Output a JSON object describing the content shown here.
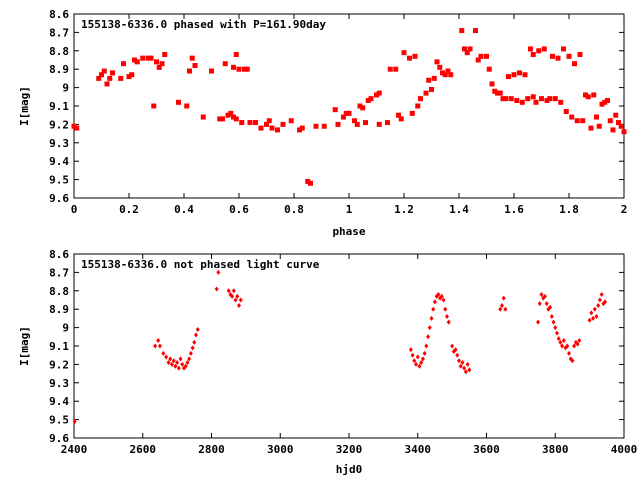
{
  "chart_data": [
    {
      "type": "scatter",
      "title": "155138-6336.0 phased with P=161.90day",
      "xlabel": "phase",
      "ylabel": "I[mag]",
      "xlim": [
        0,
        2
      ],
      "ylim": [
        9.6,
        8.6
      ],
      "y_inverted": true,
      "xticks": [
        "0",
        "0.2",
        "0.4",
        "0.6",
        "0.8",
        "1",
        "1.2",
        "1.4",
        "1.6",
        "1.8",
        "2"
      ],
      "yticks": [
        "8.6",
        "8.7",
        "8.8",
        "8.9",
        "9",
        "9.1",
        "9.2",
        "9.3",
        "9.4",
        "9.5",
        "9.6"
      ],
      "marker_color": "#ff0000",
      "points": [
        [
          0.0,
          9.21
        ],
        [
          0.01,
          9.22
        ],
        [
          0.09,
          8.95
        ],
        [
          0.1,
          8.93
        ],
        [
          0.11,
          8.91
        ],
        [
          0.12,
          8.98
        ],
        [
          0.13,
          8.95
        ],
        [
          0.14,
          8.92
        ],
        [
          0.17,
          8.95
        ],
        [
          0.18,
          8.87
        ],
        [
          0.2,
          8.94
        ],
        [
          0.21,
          8.93
        ],
        [
          0.22,
          8.85
        ],
        [
          0.23,
          8.86
        ],
        [
          0.25,
          8.84
        ],
        [
          0.27,
          8.84
        ],
        [
          0.28,
          8.84
        ],
        [
          0.29,
          9.1
        ],
        [
          0.3,
          8.86
        ],
        [
          0.31,
          8.89
        ],
        [
          0.32,
          8.87
        ],
        [
          0.33,
          8.82
        ],
        [
          0.38,
          9.08
        ],
        [
          0.41,
          9.1
        ],
        [
          0.42,
          8.91
        ],
        [
          0.43,
          8.84
        ],
        [
          0.44,
          8.88
        ],
        [
          0.47,
          9.16
        ],
        [
          0.5,
          8.91
        ],
        [
          0.53,
          9.17
        ],
        [
          0.54,
          9.17
        ],
        [
          0.55,
          8.87
        ],
        [
          0.56,
          9.15
        ],
        [
          0.57,
          9.14
        ],
        [
          0.58,
          8.89
        ],
        [
          0.58,
          9.16
        ],
        [
          0.59,
          8.82
        ],
        [
          0.59,
          9.17
        ],
        [
          0.6,
          8.9
        ],
        [
          0.61,
          9.19
        ],
        [
          0.62,
          8.9
        ],
        [
          0.63,
          8.9
        ],
        [
          0.64,
          9.19
        ],
        [
          0.66,
          9.19
        ],
        [
          0.68,
          9.22
        ],
        [
          0.7,
          9.2
        ],
        [
          0.71,
          9.18
        ],
        [
          0.72,
          9.22
        ],
        [
          0.74,
          9.23
        ],
        [
          0.76,
          9.2
        ],
        [
          0.79,
          9.18
        ],
        [
          0.82,
          9.23
        ],
        [
          0.83,
          9.22
        ],
        [
          0.85,
          9.51
        ],
        [
          0.86,
          9.52
        ],
        [
          0.88,
          9.21
        ],
        [
          0.91,
          9.21
        ],
        [
          0.95,
          9.12
        ],
        [
          0.96,
          9.2
        ],
        [
          0.98,
          9.16
        ],
        [
          0.99,
          9.14
        ],
        [
          1.0,
          9.14
        ],
        [
          1.02,
          9.18
        ],
        [
          1.03,
          9.2
        ],
        [
          1.04,
          9.1
        ],
        [
          1.05,
          9.11
        ],
        [
          1.06,
          9.19
        ],
        [
          1.07,
          9.07
        ],
        [
          1.08,
          9.06
        ],
        [
          1.1,
          9.04
        ],
        [
          1.11,
          9.03
        ],
        [
          1.11,
          9.2
        ],
        [
          1.14,
          9.19
        ],
        [
          1.15,
          8.9
        ],
        [
          1.17,
          8.9
        ],
        [
          1.18,
          9.15
        ],
        [
          1.19,
          9.17
        ],
        [
          1.2,
          8.81
        ],
        [
          1.22,
          8.84
        ],
        [
          1.23,
          9.14
        ],
        [
          1.24,
          8.83
        ],
        [
          1.25,
          9.1
        ],
        [
          1.26,
          9.06
        ],
        [
          1.28,
          9.03
        ],
        [
          1.29,
          8.96
        ],
        [
          1.3,
          9.01
        ],
        [
          1.31,
          8.95
        ],
        [
          1.32,
          8.86
        ],
        [
          1.33,
          8.89
        ],
        [
          1.34,
          8.92
        ],
        [
          1.35,
          8.93
        ],
        [
          1.36,
          8.91
        ],
        [
          1.37,
          8.93
        ],
        [
          1.41,
          8.69
        ],
        [
          1.42,
          8.79
        ],
        [
          1.43,
          8.81
        ],
        [
          1.44,
          8.79
        ],
        [
          1.46,
          8.69
        ],
        [
          1.47,
          8.85
        ],
        [
          1.48,
          8.83
        ],
        [
          1.5,
          8.83
        ],
        [
          1.51,
          8.9
        ],
        [
          1.52,
          8.98
        ],
        [
          1.53,
          9.02
        ],
        [
          1.54,
          9.03
        ],
        [
          1.55,
          9.03
        ],
        [
          1.56,
          9.06
        ],
        [
          1.57,
          9.06
        ],
        [
          1.58,
          8.94
        ],
        [
          1.59,
          9.06
        ],
        [
          1.6,
          8.93
        ],
        [
          1.61,
          9.07
        ],
        [
          1.62,
          8.92
        ],
        [
          1.63,
          9.08
        ],
        [
          1.64,
          8.93
        ],
        [
          1.65,
          9.06
        ],
        [
          1.66,
          8.79
        ],
        [
          1.67,
          9.05
        ],
        [
          1.67,
          8.82
        ],
        [
          1.68,
          9.08
        ],
        [
          1.69,
          8.8
        ],
        [
          1.7,
          9.06
        ],
        [
          1.71,
          8.79
        ],
        [
          1.72,
          9.07
        ],
        [
          1.73,
          9.06
        ],
        [
          1.74,
          8.83
        ],
        [
          1.75,
          9.06
        ],
        [
          1.76,
          8.84
        ],
        [
          1.77,
          9.08
        ],
        [
          1.78,
          8.79
        ],
        [
          1.79,
          9.13
        ],
        [
          1.8,
          8.83
        ],
        [
          1.81,
          9.16
        ],
        [
          1.82,
          8.87
        ],
        [
          1.83,
          9.18
        ],
        [
          1.84,
          8.82
        ],
        [
          1.85,
          9.18
        ],
        [
          1.86,
          9.04
        ],
        [
          1.87,
          9.05
        ],
        [
          1.88,
          9.22
        ],
        [
          1.89,
          9.04
        ],
        [
          1.9,
          9.16
        ],
        [
          1.91,
          9.21
        ],
        [
          1.92,
          9.09
        ],
        [
          1.93,
          9.08
        ],
        [
          1.94,
          9.07
        ],
        [
          1.95,
          9.18
        ],
        [
          1.96,
          9.23
        ],
        [
          1.97,
          9.15
        ],
        [
          1.98,
          9.19
        ],
        [
          1.99,
          9.21
        ],
        [
          2.0,
          9.24
        ]
      ]
    },
    {
      "type": "scatter",
      "title": "155138-6336.0 not phased light curve",
      "xlabel": "hjd0",
      "ylabel": "I[mag]",
      "xlim": [
        2400,
        4000
      ],
      "ylim": [
        9.6,
        8.6
      ],
      "y_inverted": true,
      "xticks": [
        "2400",
        "2600",
        "2800",
        "3000",
        "3200",
        "3400",
        "3600",
        "3800",
        "4000"
      ],
      "yticks": [
        "8.6",
        "8.7",
        "8.8",
        "8.9",
        "9",
        "9.1",
        "9.2",
        "9.3",
        "9.4",
        "9.5",
        "9.6"
      ],
      "marker_color": "#ff0000",
      "points": [
        [
          2402,
          9.51
        ],
        [
          2636,
          9.1
        ],
        [
          2645,
          9.07
        ],
        [
          2650,
          9.1
        ],
        [
          2660,
          9.14
        ],
        [
          2668,
          9.16
        ],
        [
          2675,
          9.19
        ],
        [
          2680,
          9.17
        ],
        [
          2685,
          9.2
        ],
        [
          2690,
          9.18
        ],
        [
          2695,
          9.21
        ],
        [
          2700,
          9.19
        ],
        [
          2705,
          9.22
        ],
        [
          2710,
          9.17
        ],
        [
          2715,
          9.2
        ],
        [
          2720,
          9.22
        ],
        [
          2725,
          9.21
        ],
        [
          2730,
          9.19
        ],
        [
          2735,
          9.17
        ],
        [
          2740,
          9.14
        ],
        [
          2745,
          9.11
        ],
        [
          2750,
          9.08
        ],
        [
          2755,
          9.04
        ],
        [
          2760,
          9.01
        ],
        [
          2815,
          8.79
        ],
        [
          2820,
          8.7
        ],
        [
          2850,
          8.8
        ],
        [
          2855,
          8.82
        ],
        [
          2860,
          8.83
        ],
        [
          2865,
          8.8
        ],
        [
          2870,
          8.85
        ],
        [
          2875,
          8.83
        ],
        [
          2880,
          8.88
        ],
        [
          2885,
          8.85
        ],
        [
          3380,
          9.12
        ],
        [
          3385,
          9.15
        ],
        [
          3390,
          9.18
        ],
        [
          3395,
          9.2
        ],
        [
          3400,
          9.16
        ],
        [
          3405,
          9.21
        ],
        [
          3410,
          9.19
        ],
        [
          3415,
          9.17
        ],
        [
          3420,
          9.14
        ],
        [
          3425,
          9.1
        ],
        [
          3430,
          9.05
        ],
        [
          3435,
          9.0
        ],
        [
          3440,
          8.95
        ],
        [
          3445,
          8.9
        ],
        [
          3450,
          8.86
        ],
        [
          3455,
          8.83
        ],
        [
          3460,
          8.82
        ],
        [
          3465,
          8.84
        ],
        [
          3470,
          8.83
        ],
        [
          3475,
          8.85
        ],
        [
          3480,
          8.9
        ],
        [
          3485,
          8.94
        ],
        [
          3490,
          8.97
        ],
        [
          3500,
          9.1
        ],
        [
          3505,
          9.13
        ],
        [
          3510,
          9.12
        ],
        [
          3515,
          9.15
        ],
        [
          3520,
          9.18
        ],
        [
          3525,
          9.21
        ],
        [
          3530,
          9.19
        ],
        [
          3535,
          9.22
        ],
        [
          3540,
          9.24
        ],
        [
          3545,
          9.2
        ],
        [
          3550,
          9.23
        ],
        [
          3640,
          8.9
        ],
        [
          3645,
          8.88
        ],
        [
          3650,
          8.84
        ],
        [
          3655,
          8.9
        ],
        [
          3750,
          8.97
        ],
        [
          3755,
          8.87
        ],
        [
          3760,
          8.82
        ],
        [
          3765,
          8.84
        ],
        [
          3770,
          8.83
        ],
        [
          3775,
          8.87
        ],
        [
          3780,
          8.9
        ],
        [
          3785,
          8.89
        ],
        [
          3790,
          8.94
        ],
        [
          3795,
          8.97
        ],
        [
          3800,
          9.0
        ],
        [
          3805,
          9.03
        ],
        [
          3810,
          9.06
        ],
        [
          3815,
          9.08
        ],
        [
          3820,
          9.1
        ],
        [
          3825,
          9.07
        ],
        [
          3830,
          9.11
        ],
        [
          3835,
          9.1
        ],
        [
          3840,
          9.14
        ],
        [
          3845,
          9.17
        ],
        [
          3850,
          9.18
        ],
        [
          3855,
          9.1
        ],
        [
          3860,
          9.08
        ],
        [
          3865,
          9.09
        ],
        [
          3870,
          9.07
        ],
        [
          3900,
          8.96
        ],
        [
          3905,
          8.92
        ],
        [
          3910,
          8.95
        ],
        [
          3915,
          8.9
        ],
        [
          3920,
          8.94
        ],
        [
          3925,
          8.88
        ],
        [
          3930,
          8.85
        ],
        [
          3935,
          8.82
        ],
        [
          3940,
          8.87
        ],
        [
          3945,
          8.86
        ]
      ]
    }
  ]
}
